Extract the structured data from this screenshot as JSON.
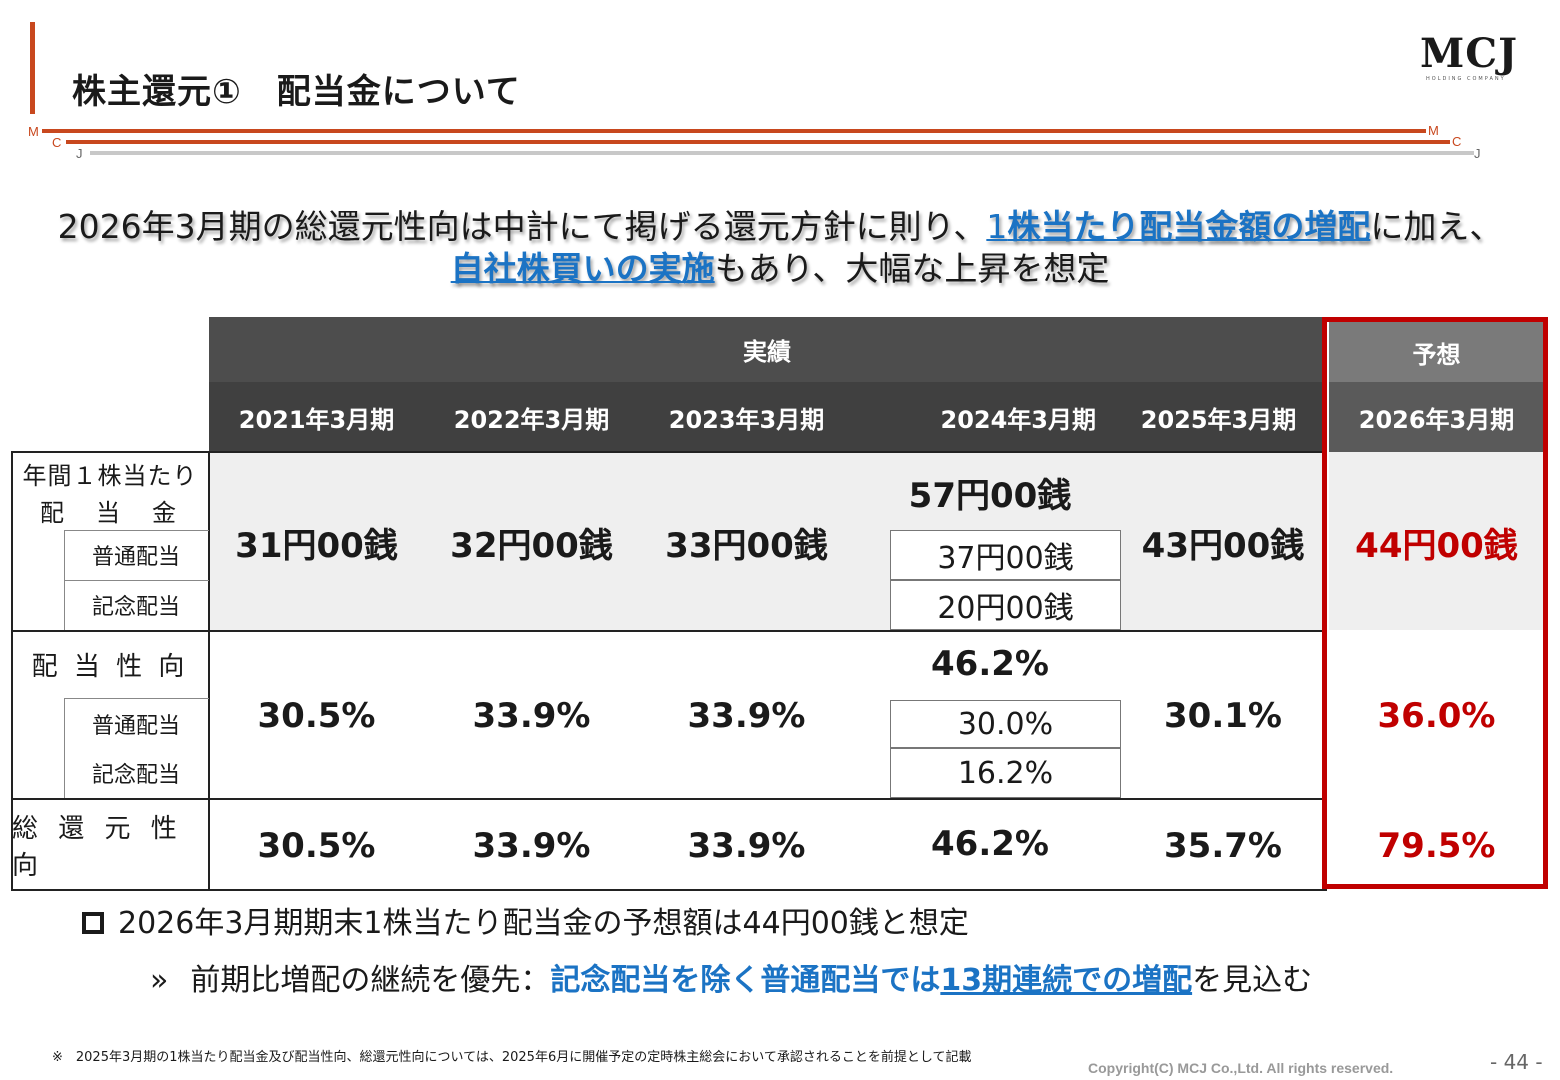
{
  "header": {
    "title": "株主還元①　配当金について",
    "logo_text": "MCJ",
    "logo_subtext": "HOLDING COMPANY",
    "rule_letters": [
      "M",
      "C",
      "J",
      "M",
      "C",
      "J"
    ]
  },
  "headline": {
    "line1_plain": "2026年3月期の総還元性向は中計にて掲げる還元方針に則り、",
    "line1_num": "1",
    "line1_bold": "株当たり配当金額の増配",
    "line1_tail": "に加え、",
    "line2_bold": "自社株買いの実施",
    "line2_tail": "もあり、大幅な上昇を想定"
  },
  "table": {
    "group_actual": "実績",
    "group_forecast": "予想",
    "periods": [
      "2021年3月期",
      "2022年3月期",
      "2023年3月期",
      "2024年3月期",
      "2025年3月期",
      "2026年3月期"
    ],
    "row_dividend_label_1": "年間１株当たり",
    "row_dividend_label_2": "配　当　金",
    "sub_ordinary": "普通配当",
    "sub_commemorative": "記念配当",
    "dividend": [
      "31円00銭",
      "32円00銭",
      "33円00銭",
      "57円00銭",
      "43円00銭",
      "44円00銭"
    ],
    "dividend_2024_ordinary": "37円00銭",
    "dividend_2024_commemorative": "20円00銭",
    "row_payout_label": "配 当 性 向",
    "payout": [
      "30.5%",
      "33.9%",
      "33.9%",
      "46.2%",
      "30.1%",
      "36.0%"
    ],
    "payout_2024_ordinary": "30.0%",
    "payout_2024_commemorative": "16.2%",
    "row_total_label": "総 還 元 性 向",
    "total": [
      "30.5%",
      "33.9%",
      "33.9%",
      "46.2%",
      "35.7%",
      "79.5%"
    ]
  },
  "bullets": {
    "main": "2026年3月期期末1株当たり配当金の予想額は44円00銭と想定",
    "sub_marker": "»",
    "sub_plain": "前期比増配の継続を優先：",
    "sub_bold": "記念配当を除く普通配当では",
    "sub_underline": "13期連続での増配",
    "sub_tail": "を見込む"
  },
  "footer": {
    "note": "※　2025年3月期の1株当たり配当金及び配当性向、総還元性向については、2025年6月に開催予定の定時株主総会において承認されることを前提として記載",
    "copyright": "Copyright(C) MCJ Co.,Ltd. All rights reserved.",
    "page": "- 44 -"
  },
  "colors": {
    "accent_orange": "#c8481e",
    "highlight_blue": "#1b73c4",
    "forecast_red": "#c00000",
    "header_dark": "#4d4d4d"
  }
}
